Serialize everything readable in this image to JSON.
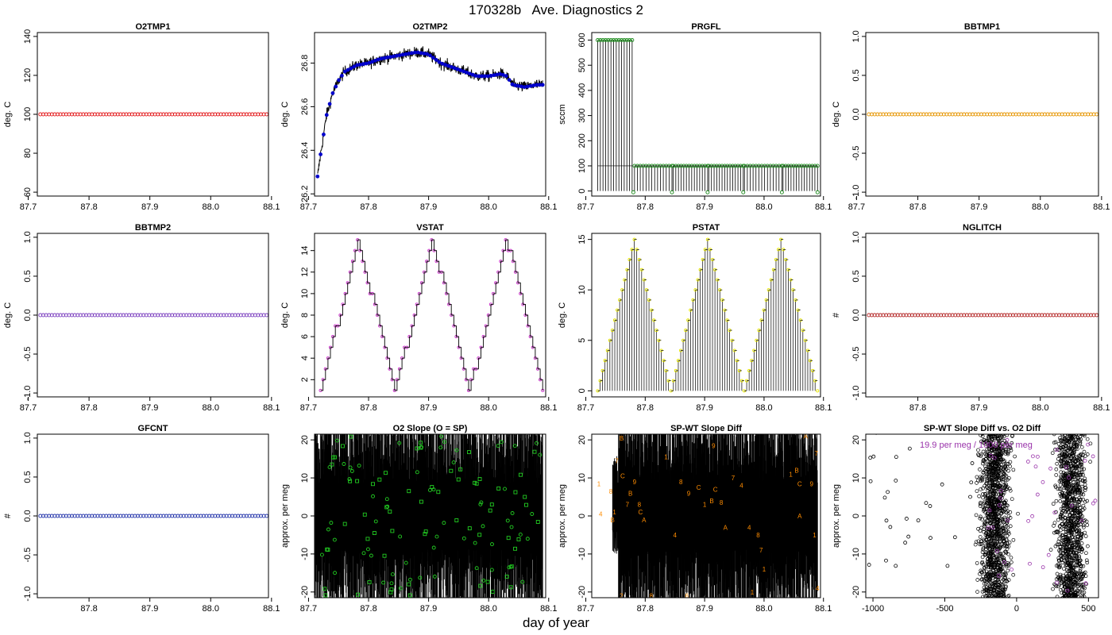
{
  "title": "170328b   Ave. Diagnostics 2",
  "xlabel": "day of year",
  "chart_data": [
    {
      "id": "o2tmp1",
      "type": "scatter",
      "title": "O2TMP1",
      "ylabel": "deg. C",
      "xlim": [
        87.715,
        88.095
      ],
      "ylim": [
        58,
        142
      ],
      "xticks": [
        87.7,
        87.8,
        87.9,
        88.0,
        88.1
      ],
      "xtick_labels": [
        "87.7",
        "87.8",
        "87.9",
        "88.0",
        "88.1"
      ],
      "yticks": [
        60,
        80,
        100,
        120,
        140
      ],
      "ytick_labels": [
        "60",
        "80",
        "100",
        "120",
        "140"
      ],
      "color": "#e31a1c",
      "series": [
        {
          "x_start": 87.72,
          "x_end": 88.092,
          "count": 80,
          "value": 100
        }
      ]
    },
    {
      "id": "o2tmp2",
      "type": "line",
      "title": "O2TMP2",
      "ylabel": "deg. C",
      "xlim": [
        87.71,
        88.095
      ],
      "ylim": [
        26.19,
        26.94
      ],
      "xticks": [
        87.7,
        87.8,
        87.9,
        88.0,
        88.1
      ],
      "xtick_labels": [
        "87.7",
        "87.8",
        "87.9",
        "88.0",
        "88.1"
      ],
      "yticks": [
        26.2,
        26.4,
        26.6,
        26.8
      ],
      "ytick_labels": [
        "26.2",
        "26.4",
        "26.6",
        "26.8"
      ],
      "color": "#0000cc",
      "series": [
        {
          "x": [
            87.715,
            87.72,
            87.73,
            87.74,
            87.75,
            87.76,
            87.78,
            87.8,
            87.82,
            87.84,
            87.86,
            87.88,
            87.9,
            87.92,
            87.94,
            87.96,
            87.98,
            88.0,
            88.02,
            88.03,
            88.04,
            88.06,
            88.08,
            88.09
          ],
          "y": [
            26.28,
            26.38,
            26.56,
            26.66,
            26.72,
            26.76,
            26.79,
            26.8,
            26.82,
            26.83,
            26.84,
            26.85,
            26.84,
            26.8,
            26.78,
            26.76,
            26.74,
            26.74,
            26.75,
            26.74,
            26.7,
            26.69,
            26.7,
            26.7
          ]
        }
      ]
    },
    {
      "id": "prgfl",
      "type": "line",
      "title": "PRGFL",
      "ylabel": "sccm",
      "xlim": [
        87.71,
        88.095
      ],
      "ylim": [
        -20,
        630
      ],
      "xticks": [
        87.7,
        87.8,
        87.9,
        88.0,
        88.1
      ],
      "xtick_labels": [
        "87.7",
        "87.8",
        "87.9",
        "88.0",
        "88.1"
      ],
      "yticks": [
        0,
        100,
        200,
        300,
        400,
        500,
        600
      ],
      "ytick_labels": [
        "0",
        "100",
        "200",
        "300",
        "400",
        "500",
        "600"
      ],
      "color": "#1a8a1a",
      "series": [
        {
          "segments": [
            {
              "x_start": 87.72,
              "x_end": 87.778,
              "value": 600
            },
            {
              "x_start": 87.782,
              "x_end": 87.845,
              "value": 100
            },
            {
              "x_start": 87.847,
              "x_end": 87.905,
              "value": 100
            },
            {
              "x_start": 87.907,
              "x_end": 87.965,
              "value": 100
            },
            {
              "x_start": 87.967,
              "x_end": 88.03,
              "value": 100
            },
            {
              "x_start": 88.032,
              "x_end": 88.09,
              "value": 100
            }
          ],
          "drops_to": 0
        }
      ]
    },
    {
      "id": "bbtmp1",
      "type": "scatter",
      "title": "BBTMP1",
      "ylabel": "deg. C",
      "xlim": [
        87.715,
        88.095
      ],
      "ylim": [
        -1.05,
        1.05
      ],
      "xticks": [
        87.7,
        87.8,
        87.9,
        88.0,
        88.1
      ],
      "xtick_labels": [
        "87.7",
        "87.8",
        "87.9",
        "88.0",
        "88.1"
      ],
      "yticks": [
        -1.0,
        -0.5,
        0.0,
        0.5,
        1.0
      ],
      "ytick_labels": [
        "-1.0",
        "-0.5",
        "0.0",
        "0.5",
        "1.0"
      ],
      "color": "#e69500",
      "series": [
        {
          "x_start": 87.72,
          "x_end": 88.092,
          "count": 80,
          "value": 0
        }
      ]
    },
    {
      "id": "bbtmp2",
      "type": "scatter",
      "title": "BBTMP2",
      "ylabel": "deg. C",
      "xlim": [
        87.715,
        88.095
      ],
      "ylim": [
        -1.05,
        1.05
      ],
      "xticks": [
        87.7,
        87.8,
        87.9,
        88.0,
        88.1
      ],
      "xtick_labels": [
        "87.7",
        "87.8",
        "87.9",
        "88.0",
        "88.1"
      ],
      "yticks": [
        -1.0,
        -0.5,
        0.0,
        0.5,
        1.0
      ],
      "ytick_labels": [
        "-1.0",
        "-0.5",
        "0.0",
        "0.5",
        "1.0"
      ],
      "color": "#7b3fbf",
      "series": [
        {
          "x_start": 87.72,
          "x_end": 88.092,
          "count": 80,
          "value": 0
        }
      ]
    },
    {
      "id": "vstat",
      "type": "line",
      "title": "VSTAT",
      "ylabel": "deg. C",
      "xlim": [
        87.71,
        88.095
      ],
      "ylim": [
        0.4,
        15.6
      ],
      "xticks": [
        87.7,
        87.8,
        87.9,
        88.0,
        88.1
      ],
      "xtick_labels": [
        "87.7",
        "87.8",
        "87.9",
        "88.0",
        "88.1"
      ],
      "yticks": [
        2,
        4,
        6,
        8,
        10,
        12,
        14
      ],
      "ytick_labels": [
        "2",
        "4",
        "6",
        "8",
        "10",
        "12",
        "14"
      ],
      "color": "#cc33cc",
      "series": [
        {
          "x_start": 87.72,
          "x_end": 88.09,
          "period": 0.124,
          "min": 1,
          "max": 15
        }
      ]
    },
    {
      "id": "pstat",
      "type": "line",
      "title": "PSTAT",
      "ylabel": "deg. C",
      "xlim": [
        87.71,
        88.095
      ],
      "ylim": [
        -0.6,
        15.6
      ],
      "xticks": [
        87.7,
        87.8,
        87.9,
        88.0,
        88.1
      ],
      "xtick_labels": [
        "87.7",
        "87.8",
        "87.9",
        "88.0",
        "88.1"
      ],
      "yticks": [
        0,
        5,
        10,
        15
      ],
      "ytick_labels": [
        "0",
        "5",
        "10",
        "15"
      ],
      "color": "#e6e600",
      "series": [
        {
          "x_start": 87.72,
          "x_end": 88.09,
          "period": 0.124,
          "min": 0,
          "max": 15
        }
      ]
    },
    {
      "id": "nglitch",
      "type": "scatter",
      "title": "NGLITCH",
      "ylabel": "#",
      "xlim": [
        87.715,
        88.095
      ],
      "ylim": [
        -1.05,
        1.05
      ],
      "xticks": [
        87.8,
        87.9,
        88.0,
        88.1
      ],
      "xtick_labels": [
        "87.8",
        "87.9",
        "88.0",
        "88.1"
      ],
      "yticks": [
        -1.0,
        -0.5,
        0.0,
        0.5,
        1.0
      ],
      "ytick_labels": [
        "-1.0",
        "-0.5",
        "0.0",
        "0.5",
        "1.0"
      ],
      "color": "#b22222",
      "series": [
        {
          "x_start": 87.72,
          "x_end": 88.092,
          "count": 80,
          "value": 0
        }
      ]
    },
    {
      "id": "gfcnt",
      "type": "scatter",
      "title": "GFCNT",
      "ylabel": "#",
      "xlim": [
        87.715,
        88.095
      ],
      "ylim": [
        -1.05,
        1.05
      ],
      "xticks": [
        87.8,
        87.9,
        88.0,
        88.1
      ],
      "xtick_labels": [
        "87.8",
        "87.9",
        "88.0",
        "88.1"
      ],
      "yticks": [
        -1.0,
        -0.5,
        0.0,
        0.5,
        1.0
      ],
      "ytick_labels": [
        "-1.0",
        "-0.5",
        "0.0",
        "0.5",
        "1.0"
      ],
      "color": "#2233aa",
      "series": [
        {
          "x_start": 87.72,
          "x_end": 88.092,
          "count": 80,
          "value": 0
        }
      ]
    },
    {
      "id": "o2slope",
      "type": "scatter",
      "title": "O2 Slope (O = SP)",
      "ylabel": "approx. per meg",
      "xlim": [
        87.71,
        88.095
      ],
      "ylim": [
        -21.5,
        21.5
      ],
      "xticks": [
        87.7,
        87.8,
        87.9,
        88.0,
        88.1
      ],
      "xtick_labels": [
        "87.7",
        "87.8",
        "87.9",
        "88.0",
        "88.1"
      ],
      "yticks": [
        -20,
        -10,
        0,
        10,
        20
      ],
      "ytick_labels": [
        "-20",
        "-10",
        "0",
        "10",
        "20"
      ],
      "color": "#22cc22",
      "series": [
        {
          "x_start": 87.72,
          "x_end": 88.09,
          "count": 130,
          "y_min": -21,
          "y_max": 21,
          "marker_types": [
            "square",
            "circle"
          ]
        }
      ]
    },
    {
      "id": "spwtslope",
      "type": "scatter",
      "title": "SP-WT Slope Diff",
      "ylabel": "approx. per meg",
      "xlim": [
        87.71,
        88.095
      ],
      "ylim": [
        -21.5,
        21.5
      ],
      "xticks": [
        87.7,
        87.8,
        87.9,
        88.0,
        88.1
      ],
      "xtick_labels": [
        "87.7",
        "87.8",
        "87.9",
        "88.0",
        "88.1"
      ],
      "yticks": [
        -20,
        -10,
        0,
        10,
        20
      ],
      "ytick_labels": [
        "-20",
        "-10",
        "0",
        "10",
        "20"
      ],
      "color": "#ff8c00",
      "series": [
        {
          "labels": [
            "1",
            "4",
            "7",
            "8",
            "9",
            "A",
            "B",
            "C"
          ],
          "points": [
            [
              87.722,
              8.5,
              "1"
            ],
            [
              87.725,
              0.5,
              "4"
            ],
            [
              87.742,
              6.5,
              "8"
            ],
            [
              87.745,
              -1,
              "B"
            ],
            [
              87.748,
              1,
              "1"
            ],
            [
              87.752,
              14.5,
              "7"
            ],
            [
              87.76,
              20.5,
              "B"
            ],
            [
              87.762,
              10.5,
              "C"
            ],
            [
              87.77,
              3,
              "7"
            ],
            [
              87.775,
              6,
              "B"
            ],
            [
              87.782,
              9,
              "9"
            ],
            [
              87.79,
              3,
              "8"
            ],
            [
              87.792,
              1,
              "C"
            ],
            [
              87.798,
              -1,
              "A"
            ],
            [
              87.835,
              15.5,
              "1"
            ],
            [
              87.85,
              -5,
              "4"
            ],
            [
              87.86,
              9,
              "8"
            ],
            [
              87.873,
              6,
              "9"
            ],
            [
              87.89,
              7.5,
              "C"
            ],
            [
              87.9,
              3,
              "1"
            ],
            [
              87.912,
              4,
              "B"
            ],
            [
              87.915,
              18.5,
              "9"
            ],
            [
              87.918,
              7,
              "C"
            ],
            [
              87.928,
              3.5,
              "8"
            ],
            [
              87.935,
              -3,
              "A"
            ],
            [
              87.948,
              10,
              "7"
            ],
            [
              87.962,
              8,
              "4"
            ],
            [
              87.945,
              -23,
              "8"
            ],
            [
              87.975,
              -3,
              "4"
            ],
            [
              87.99,
              -5,
              "8"
            ],
            [
              87.995,
              -9,
              "7"
            ],
            [
              88.0,
              -14,
              "1"
            ],
            [
              88.045,
              11,
              "1"
            ],
            [
              88.055,
              12,
              "B"
            ],
            [
              88.06,
              8.5,
              "C"
            ],
            [
              88.07,
              21,
              "A"
            ],
            [
              88.08,
              8.5,
              "9"
            ],
            [
              88.06,
              0,
              "A"
            ],
            [
              88.085,
              -5,
              "1"
            ],
            [
              88.088,
              16.5,
              "7"
            ],
            [
              88.09,
              -19,
              "4"
            ],
            [
              87.76,
              -21,
              "2"
            ],
            [
              87.81,
              -21,
              "8"
            ],
            [
              87.87,
              -21,
              "6"
            ],
            [
              87.98,
              -20,
              "1"
            ]
          ]
        }
      ]
    },
    {
      "id": "spwtvso2",
      "type": "scatter",
      "title": "SP-WT Slope Diff vs. O2 Diff",
      "ylabel": "approx. per meg",
      "xlim": [
        -1050,
        570
      ],
      "ylim": [
        -21.5,
        21.5
      ],
      "xticks": [
        -1000,
        -500,
        0,
        500
      ],
      "xtick_labels": [
        "-1000",
        "-500",
        "0",
        "500"
      ],
      "yticks": [
        -20,
        -10,
        0,
        10,
        20
      ],
      "ytick_labels": [
        "-20",
        "-10",
        "0",
        "10",
        "20"
      ],
      "color": "#000000",
      "annotation": "19.9 per meg / 1000 per meg",
      "annotation_color": "#9933aa",
      "series": [
        {
          "clusters": [
            {
              "x_center": -150,
              "spread": 180,
              "count": 1200
            },
            {
              "x_center": 380,
              "spread": 170,
              "count": 1100
            }
          ],
          "outliers_x_range": [
            -1050,
            -300
          ],
          "outlier_count": 28
        }
      ]
    }
  ]
}
